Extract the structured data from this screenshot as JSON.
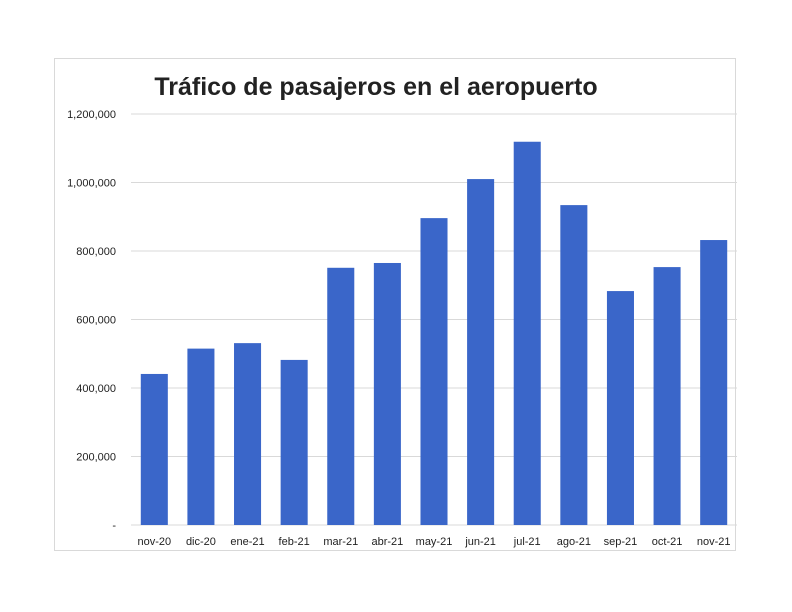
{
  "chart_data": {
    "type": "bar",
    "title": "Tráfico de pasajeros en el aeropuerto",
    "xlabel": "",
    "ylabel": "",
    "categories": [
      "nov-20",
      "dic-20",
      "ene-21",
      "feb-21",
      "mar-21",
      "abr-21",
      "may-21",
      "jun-21",
      "jul-21",
      "ago-21",
      "sep-21",
      "oct-21",
      "nov-21"
    ],
    "values": [
      441000,
      515000,
      531000,
      482000,
      751000,
      765000,
      896000,
      1010000,
      1119000,
      934000,
      683000,
      753000,
      832000
    ],
    "ylim": [
      0,
      1200000
    ],
    "yticks": [
      0,
      200000,
      400000,
      600000,
      800000,
      1000000,
      1200000
    ],
    "ytick_labels": [
      "-",
      "200,000",
      "400,000",
      "600,000",
      "800,000",
      "1,000,000",
      "1,200,000"
    ],
    "grid": true,
    "legend": "none",
    "bar_color": "#3A66C9",
    "grid_color": "#d9d9d9"
  }
}
